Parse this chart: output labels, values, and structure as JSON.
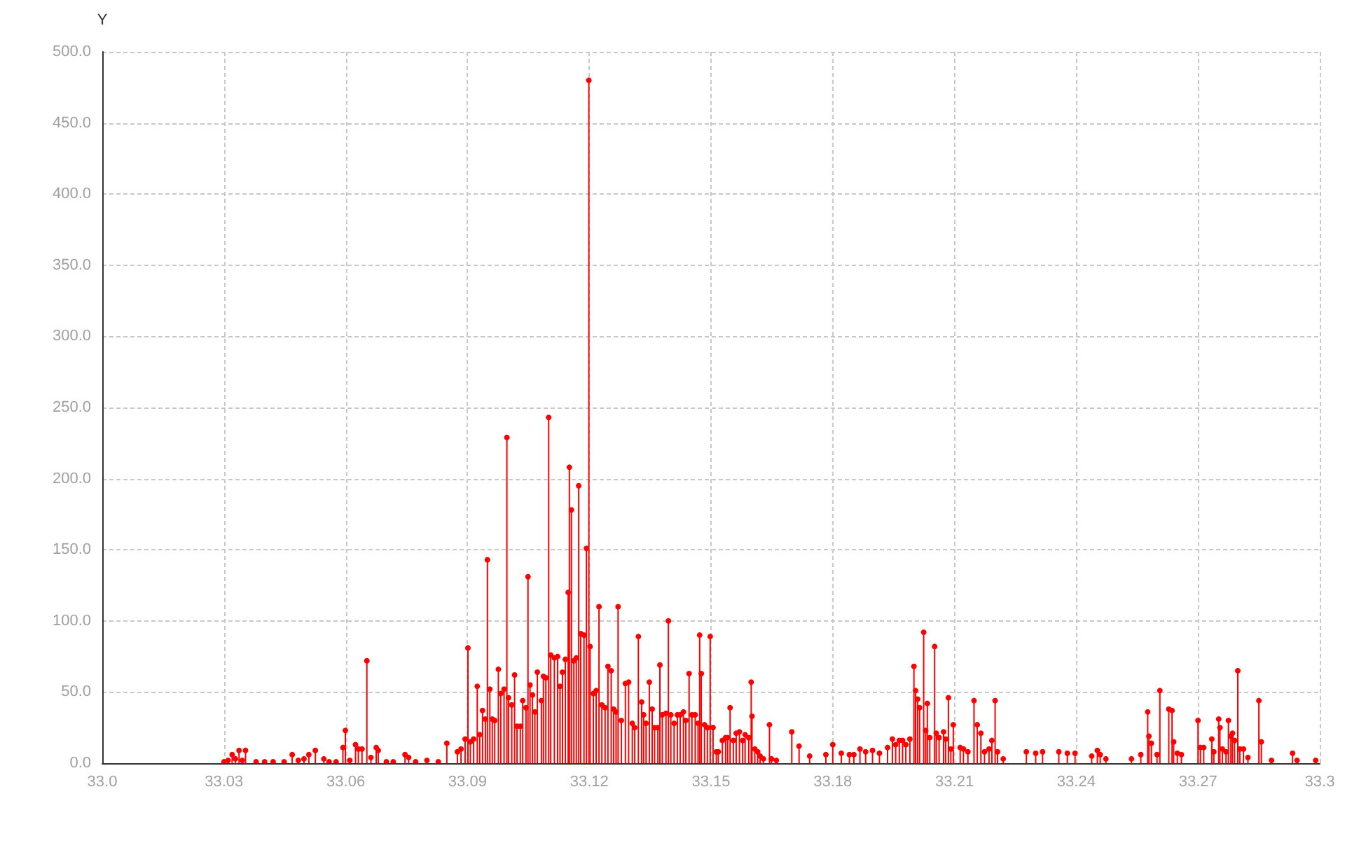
{
  "chart_data": {
    "type": "lollipop",
    "ylabel": "Y",
    "x": [
      33.03,
      33.031,
      33.032,
      33.0328,
      33.0337,
      33.0345,
      33.0353,
      33.0379,
      33.04,
      33.0421,
      33.0448,
      33.0468,
      33.0483,
      33.0497,
      33.0509,
      33.0525,
      33.0546,
      33.0559,
      33.0576,
      33.0593,
      33.0599,
      33.061,
      33.0624,
      33.0631,
      33.064,
      33.0652,
      33.0662,
      33.0675,
      33.068,
      33.07,
      33.0717,
      33.0746,
      33.0755,
      33.0772,
      33.08,
      33.0828,
      33.0849,
      33.0875,
      33.0884,
      33.0894,
      33.0901,
      33.0907,
      33.0915,
      33.0924,
      33.093,
      33.0937,
      33.0944,
      33.0949,
      33.0955,
      33.0961,
      33.0967,
      33.0976,
      33.0982,
      33.099,
      33.0997,
      33.1001,
      33.1009,
      33.1016,
      33.1022,
      33.103,
      33.1036,
      33.1044,
      33.1049,
      33.1054,
      33.106,
      33.1066,
      33.1072,
      33.1082,
      33.1087,
      33.1093,
      33.11,
      33.1105,
      33.1114,
      33.1122,
      33.1128,
      33.1134,
      33.1141,
      33.1148,
      33.1151,
      33.1156,
      33.1162,
      33.1168,
      33.1174,
      33.1179,
      33.1187,
      33.1193,
      33.1199,
      33.1202,
      33.121,
      33.1217,
      33.1224,
      33.1231,
      33.1239,
      33.1246,
      33.1254,
      33.126,
      33.1266,
      33.1271,
      33.1279,
      33.1289,
      33.1297,
      33.1306,
      33.1312,
      33.1321,
      33.1329,
      33.1334,
      33.134,
      33.1348,
      33.1355,
      33.1361,
      33.1369,
      33.1374,
      33.138,
      33.1389,
      33.1395,
      33.1401,
      33.1409,
      33.1417,
      33.1424,
      33.1432,
      33.1438,
      33.1446,
      33.1453,
      33.1461,
      33.1468,
      33.1472,
      33.1476,
      33.1484,
      33.1491,
      33.1498,
      33.1505,
      33.1513,
      33.1518,
      33.1528,
      33.1536,
      33.1541,
      33.1547,
      33.1555,
      33.1562,
      33.157,
      33.1578,
      33.1584,
      33.1593,
      33.1599,
      33.1601,
      33.1608,
      33.1615,
      33.1621,
      33.1629,
      33.1644,
      33.1649,
      33.1661,
      33.1699,
      33.1717,
      33.1743,
      33.1783,
      33.18,
      33.1821,
      33.1841,
      33.1852,
      33.1867,
      33.1881,
      33.1898,
      33.1915,
      33.1935,
      33.1947,
      33.1955,
      33.1964,
      33.1972,
      33.198,
      33.199,
      33.2,
      33.2004,
      33.2009,
      33.2014,
      33.2024,
      33.2029,
      33.2033,
      33.2039,
      33.2051,
      33.2055,
      33.2062,
      33.2073,
      33.2078,
      33.2085,
      33.2091,
      33.2097,
      33.2114,
      33.2122,
      33.2133,
      33.2148,
      33.2156,
      33.2165,
      33.2174,
      33.2185,
      33.2192,
      33.22,
      33.2206,
      33.222,
      33.2277,
      33.23,
      33.2317,
      33.2357,
      33.2378,
      33.2397,
      33.2438,
      33.2452,
      33.2459,
      33.2473,
      33.2536,
      33.2559,
      33.2576,
      33.2579,
      33.2585,
      33.2599,
      33.2606,
      33.2628,
      33.2636,
      33.264,
      33.2649,
      33.2659,
      33.27,
      33.2706,
      33.2714,
      33.2734,
      33.2739,
      33.2751,
      33.2754,
      33.276,
      33.2769,
      33.2775,
      33.2781,
      33.2785,
      33.279,
      33.2798,
      33.2803,
      33.2812,
      33.2823,
      33.285,
      33.2856,
      33.2881,
      33.2933,
      33.2944,
      33.299
    ],
    "values": [
      1,
      2,
      6,
      3,
      9,
      2,
      9,
      1,
      1,
      1,
      1,
      6,
      2,
      3,
      6,
      9,
      3,
      1,
      1,
      11,
      23,
      2,
      13,
      10,
      10,
      72,
      4,
      11,
      9,
      1,
      1,
      6,
      4,
      1,
      2,
      1,
      14,
      8,
      10,
      17,
      81,
      15,
      17,
      54,
      20,
      37,
      31,
      143,
      52,
      31,
      30,
      66,
      49,
      52,
      229,
      46,
      41,
      62,
      26,
      26,
      44,
      39,
      131,
      55,
      48,
      36,
      64,
      44,
      61,
      60,
      243,
      76,
      74,
      75,
      54,
      64,
      73,
      120,
      208,
      178,
      72,
      74,
      195,
      91,
      90,
      151,
      480,
      82,
      49,
      51,
      110,
      41,
      39,
      68,
      65,
      38,
      36,
      110,
      30,
      56,
      57,
      28,
      25,
      89,
      43,
      34,
      28,
      57,
      38,
      25,
      25,
      69,
      34,
      35,
      100,
      34,
      28,
      34,
      34,
      36,
      30,
      63,
      34,
      34,
      28,
      90,
      63,
      27,
      25,
      89,
      25,
      8,
      8,
      16,
      18,
      18,
      39,
      16,
      21,
      22,
      16,
      20,
      18,
      57,
      33,
      10,
      8,
      5,
      3,
      27,
      3,
      2,
      22,
      12,
      5,
      6,
      13,
      7,
      6,
      6,
      10,
      8,
      9,
      7,
      11,
      17,
      13,
      16,
      16,
      13,
      17,
      68,
      51,
      45,
      39,
      92,
      23,
      42,
      18,
      82,
      21,
      18,
      22,
      17,
      46,
      10,
      27,
      11,
      10,
      8,
      44,
      27,
      21,
      8,
      10,
      16,
      44,
      8,
      3,
      8,
      7,
      8,
      8,
      7,
      7,
      5,
      9,
      6,
      3,
      3,
      6,
      36,
      19,
      14,
      6,
      51,
      38,
      37,
      15,
      7,
      6,
      30,
      11,
      11,
      17,
      8,
      31,
      25,
      10,
      8,
      30,
      19,
      21,
      16,
      65,
      10,
      10,
      4,
      44,
      15,
      2,
      7,
      2,
      2
    ],
    "color": "#ff0000",
    "marker": "circle",
    "xlim": [
      33.0,
      33.3
    ],
    "xticks": [
      {
        "value": 33.0,
        "label": "33.0"
      },
      33.03,
      33.06,
      33.09,
      33.12,
      33.15,
      33.18,
      33.21,
      33.24,
      33.27,
      33.3
    ],
    "ylim": [
      0,
      500
    ],
    "yticks": [
      {
        "value": 0,
        "label": "0.0"
      },
      {
        "value": 50,
        "label": "50.0"
      },
      {
        "value": 100,
        "label": "100.0"
      },
      {
        "value": 150,
        "label": "150.0"
      },
      {
        "value": 200,
        "label": "200.0"
      },
      {
        "value": 250,
        "label": "250.0"
      },
      {
        "value": 300,
        "label": "300.0"
      },
      {
        "value": 350,
        "label": "350.0"
      },
      {
        "value": 400,
        "label": "400.0"
      },
      {
        "value": 450,
        "label": "450.0"
      },
      {
        "value": 500,
        "label": "500.0"
      }
    ],
    "grid": true
  }
}
